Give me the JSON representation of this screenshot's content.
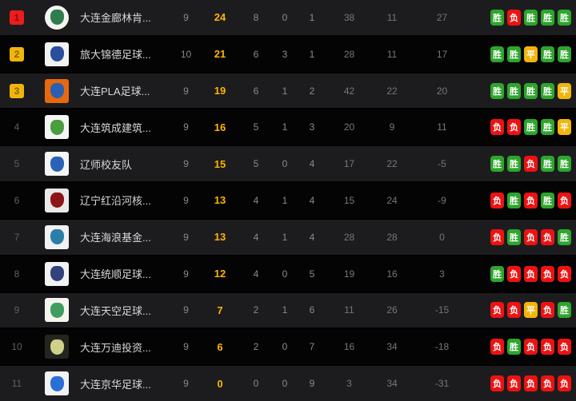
{
  "table_name": "league-standings",
  "form_labels": {
    "win": "胜",
    "loss": "负",
    "draw": "平"
  },
  "colors": {
    "points": "#ffb400",
    "win_badge": "#2ea52c",
    "loss_badge": "#ed1212",
    "draw_badge": "#f2b50c",
    "rank1_badge": "#ed1c1c",
    "rank23_badge": "#f0b40c",
    "row_odd_bg": "#1c1c1f",
    "row_even_bg": "#040405"
  },
  "rows": [
    {
      "rank": 1,
      "rank_style": "red",
      "team": "大连金廊林肯...",
      "logo": {
        "shape": "circle",
        "bg": "#f5f5f0",
        "inner": "#2f7d4f"
      },
      "played": 9,
      "points": 24,
      "wins": 8,
      "draws": 0,
      "losses": 1,
      "gf": 38,
      "ga": 11,
      "gd": 27,
      "form": [
        "win",
        "loss",
        "win",
        "win",
        "win"
      ]
    },
    {
      "rank": 2,
      "rank_style": "gold",
      "team": "旅大锦德足球...",
      "logo": {
        "shape": "square",
        "bg": "#f2f2f2",
        "inner": "#2a4e9e"
      },
      "played": 10,
      "points": 21,
      "wins": 6,
      "draws": 3,
      "losses": 1,
      "gf": 28,
      "ga": 11,
      "gd": 17,
      "form": [
        "win",
        "win",
        "draw",
        "win",
        "win"
      ]
    },
    {
      "rank": 3,
      "rank_style": "gold",
      "team": "大连PLA足球...",
      "logo": {
        "shape": "square",
        "bg": "#e8680f",
        "inner": "#2a5fb0"
      },
      "played": 9,
      "points": 19,
      "wins": 6,
      "draws": 1,
      "losses": 2,
      "gf": 42,
      "ga": 22,
      "gd": 20,
      "form": [
        "win",
        "win",
        "win",
        "win",
        "draw"
      ]
    },
    {
      "rank": 4,
      "rank_style": "plain",
      "team": "大连筑成建筑...",
      "logo": {
        "shape": "square",
        "bg": "#f5f5f5",
        "inner": "#4a9e3f"
      },
      "played": 9,
      "points": 16,
      "wins": 5,
      "draws": 1,
      "losses": 3,
      "gf": 20,
      "ga": 9,
      "gd": 11,
      "form": [
        "loss",
        "loss",
        "win",
        "win",
        "draw"
      ]
    },
    {
      "rank": 5,
      "rank_style": "plain",
      "team": "辽师校友队",
      "logo": {
        "shape": "square",
        "bg": "#f5f5f5",
        "inner": "#2a62b8"
      },
      "played": 9,
      "points": 15,
      "wins": 5,
      "draws": 0,
      "losses": 4,
      "gf": 17,
      "ga": 22,
      "gd": -5,
      "form": [
        "win",
        "win",
        "loss",
        "win",
        "win"
      ]
    },
    {
      "rank": 6,
      "rank_style": "plain",
      "team": "辽宁红沿河核...",
      "logo": {
        "shape": "square",
        "bg": "#e9e9e9",
        "inner": "#8e1418"
      },
      "played": 9,
      "points": 13,
      "wins": 4,
      "draws": 1,
      "losses": 4,
      "gf": 15,
      "ga": 24,
      "gd": -9,
      "form": [
        "loss",
        "win",
        "loss",
        "win",
        "loss"
      ]
    },
    {
      "rank": 7,
      "rank_style": "plain",
      "team": "大连海浪基金...",
      "logo": {
        "shape": "square",
        "bg": "#f2f2f2",
        "inner": "#2a7fa8"
      },
      "played": 9,
      "points": 13,
      "wins": 4,
      "draws": 1,
      "losses": 4,
      "gf": 28,
      "ga": 28,
      "gd": 0,
      "form": [
        "loss",
        "win",
        "loss",
        "loss",
        "win"
      ]
    },
    {
      "rank": 8,
      "rank_style": "plain",
      "team": "大连统顺足球...",
      "logo": {
        "shape": "square",
        "bg": "#f2f2f2",
        "inner": "#32427d"
      },
      "played": 9,
      "points": 12,
      "wins": 4,
      "draws": 0,
      "losses": 5,
      "gf": 19,
      "ga": 16,
      "gd": 3,
      "form": [
        "win",
        "loss",
        "loss",
        "loss",
        "loss"
      ]
    },
    {
      "rank": 9,
      "rank_style": "plain",
      "team": "大连天空足球...",
      "logo": {
        "shape": "square",
        "bg": "#f5f5f0",
        "inner": "#3f9e5f"
      },
      "played": 9,
      "points": 7,
      "wins": 2,
      "draws": 1,
      "losses": 6,
      "gf": 11,
      "ga": 26,
      "gd": -15,
      "form": [
        "loss",
        "loss",
        "draw",
        "loss",
        "win"
      ]
    },
    {
      "rank": 10,
      "rank_style": "plain",
      "team": "大连万迪投资...",
      "logo": {
        "shape": "square",
        "bg": "#23261e",
        "inner": "#cfd08a"
      },
      "played": 9,
      "points": 6,
      "wins": 2,
      "draws": 0,
      "losses": 7,
      "gf": 16,
      "ga": 34,
      "gd": -18,
      "form": [
        "loss",
        "win",
        "loss",
        "loss",
        "loss"
      ]
    },
    {
      "rank": 11,
      "rank_style": "plain",
      "team": "大连京华足球...",
      "logo": {
        "shape": "square",
        "bg": "#f2f2f2",
        "inner": "#2a6fd8"
      },
      "played": 9,
      "points": 0,
      "wins": 0,
      "draws": 0,
      "losses": 9,
      "gf": 3,
      "ga": 34,
      "gd": -31,
      "form": [
        "loss",
        "loss",
        "loss",
        "loss",
        "loss"
      ]
    }
  ]
}
